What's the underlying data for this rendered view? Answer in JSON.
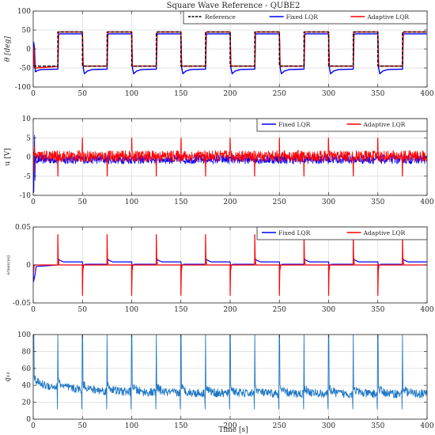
{
  "figure": {
    "title": "Square Wave Reference - QUBE2",
    "xlabel": "Time [s]"
  },
  "colors": {
    "reference": "#000000",
    "fixed": "#0000ff",
    "adaptive": "#ff0000",
    "q11": "#1f77c4",
    "grid": "#d9d9d9"
  },
  "chart_data": [
    {
      "type": "line",
      "title": "Square Wave Reference - QUBE2",
      "ylabel": "θ [deg]",
      "xlim": [
        0,
        400
      ],
      "ylim": [
        -100,
        100
      ],
      "xticks": [
        0,
        50,
        100,
        150,
        200,
        250,
        300,
        350,
        400
      ],
      "yticks": [
        -100,
        -50,
        0,
        50,
        100
      ],
      "grid": true,
      "legend": "top-right",
      "square_wave": {
        "period_s": 50,
        "first_edge_s": 25,
        "amplitude_deg": 45
      },
      "series": [
        {
          "name": "Reference",
          "style": "dashed",
          "color": "#000000",
          "x": [
            0,
            25,
            25,
            50,
            50,
            75,
            75,
            100,
            100,
            125,
            125,
            150,
            150,
            175,
            175,
            200,
            200,
            225,
            225,
            250,
            250,
            275,
            275,
            300,
            300,
            325,
            325,
            350,
            350,
            375,
            375,
            400
          ],
          "y": [
            -45,
            -45,
            45,
            45,
            -45,
            -45,
            45,
            45,
            -45,
            -45,
            45,
            45,
            -45,
            -45,
            45,
            45,
            -45,
            -45,
            45,
            45,
            -45,
            -45,
            45,
            45,
            -45,
            -45,
            45,
            45,
            -45,
            -45,
            45,
            45
          ]
        },
        {
          "name": "Fixed LQR",
          "color": "#0000ff",
          "level_after_rise_deg": 40,
          "level_after_fall_deg": -53,
          "overshoot_after_fall_deg": -65,
          "initial_spike_deg": 18
        },
        {
          "name": "Adaptive LQR",
          "color": "#ff0000",
          "level_after_rise_deg": 45,
          "level_after_fall_deg": -45
        }
      ]
    },
    {
      "type": "line",
      "ylabel": "u [V]",
      "xlim": [
        0,
        400
      ],
      "ylim": [
        -10,
        10
      ],
      "xticks": [
        0,
        50,
        100,
        150,
        200,
        250,
        300,
        350,
        400
      ],
      "yticks": [
        -10,
        -5,
        0,
        5,
        10
      ],
      "grid": true,
      "legend": "top-right",
      "series": [
        {
          "name": "Fixed LQR",
          "color": "#0000ff",
          "noise_band_V": 1.2,
          "initial_peak_V": 10
        },
        {
          "name": "Adaptive LQR",
          "color": "#ff0000",
          "noise_band_V": 1.5,
          "spike_at_rise_V": -5,
          "spike_at_fall_V": 5
        }
      ]
    },
    {
      "type": "line",
      "ylabel": "e/max(|e|)",
      "xlim": [
        0,
        400
      ],
      "ylim": [
        -0.05,
        0.05
      ],
      "xticks": [
        0,
        50,
        100,
        150,
        200,
        250,
        300,
        350,
        400
      ],
      "yticks": [
        -0.05,
        0,
        0.05
      ],
      "grid": true,
      "legend": "top-right",
      "series": [
        {
          "name": "Fixed LQR",
          "color": "#0000ff",
          "bump_after_rise": 0.008,
          "settled_after_rise": 0.004,
          "initial_dip": -0.022
        },
        {
          "name": "Adaptive LQR",
          "color": "#ff0000",
          "spike_at_rise": 0.04,
          "spike_at_fall": -0.04,
          "baseline": 0.0
        }
      ]
    },
    {
      "type": "line",
      "ylabel": "q₁₁",
      "xlim": [
        0,
        400
      ],
      "ylim": [
        0,
        100
      ],
      "xticks": [
        0,
        50,
        100,
        150,
        200,
        250,
        300,
        350,
        400
      ],
      "yticks": [
        0,
        20,
        40,
        60,
        80,
        100
      ],
      "grid": true,
      "series": [
        {
          "name": "q11",
          "color": "#1f77c4",
          "initial_level": 100,
          "start_level": 42,
          "settled_level": 30,
          "noise_band": 5,
          "spike_at_edges": 100,
          "dip_at_edges": 12
        }
      ]
    }
  ]
}
